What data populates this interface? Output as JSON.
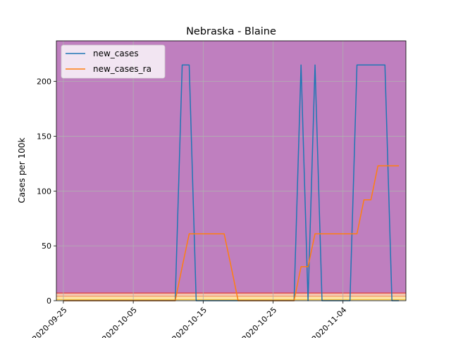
{
  "chart_data": {
    "type": "line",
    "title": "Nebraska - Blaine",
    "xlabel": "",
    "ylabel": "Cases per 100k",
    "xlim": [
      "2020-09-24",
      "2020-11-13"
    ],
    "ylim": [
      0,
      237
    ],
    "yticks": [
      0,
      50,
      100,
      150,
      200
    ],
    "xticks": [
      "2020-09-25",
      "2020-10-05",
      "2020-10-15",
      "2020-10-25",
      "2020-11-04"
    ],
    "grid": true,
    "legend": "top-left",
    "background_bands": [
      {
        "from": 7,
        "to": 237,
        "color": "#bf7fbf"
      },
      {
        "from": 4,
        "to": 7,
        "color": "#f4c7b0"
      },
      {
        "from": 1,
        "to": 4,
        "color": "#fde6a8"
      },
      {
        "from": 0,
        "to": 1,
        "color": "#fff3c4"
      }
    ],
    "threshold_lines": [
      {
        "y": 7,
        "color": "#e03a3a"
      },
      {
        "y": 4,
        "color": "#f29a6a"
      },
      {
        "y": 1,
        "color": "#f5c242"
      }
    ],
    "x": [
      "2020-09-25",
      "2020-09-26",
      "2020-09-27",
      "2020-09-28",
      "2020-09-29",
      "2020-09-30",
      "2020-10-01",
      "2020-10-02",
      "2020-10-03",
      "2020-10-04",
      "2020-10-05",
      "2020-10-06",
      "2020-10-07",
      "2020-10-08",
      "2020-10-09",
      "2020-10-10",
      "2020-10-11",
      "2020-10-12",
      "2020-10-13",
      "2020-10-14",
      "2020-10-15",
      "2020-10-16",
      "2020-10-17",
      "2020-10-18",
      "2020-10-19",
      "2020-10-20",
      "2020-10-21",
      "2020-10-22",
      "2020-10-23",
      "2020-10-24",
      "2020-10-25",
      "2020-10-26",
      "2020-10-27",
      "2020-10-28",
      "2020-10-29",
      "2020-10-30",
      "2020-10-31",
      "2020-11-01",
      "2020-11-02",
      "2020-11-03",
      "2020-11-04",
      "2020-11-05",
      "2020-11-06",
      "2020-11-07",
      "2020-11-08",
      "2020-11-09",
      "2020-11-10",
      "2020-11-11",
      "2020-11-12"
    ],
    "series": [
      {
        "name": "new_cases",
        "color": "#1f77b4",
        "values": [
          0,
          0,
          0,
          0,
          0,
          0,
          0,
          0,
          0,
          0,
          0,
          0,
          0,
          0,
          0,
          0,
          0,
          215,
          215,
          0,
          0,
          0,
          0,
          0,
          0,
          0,
          0,
          0,
          0,
          0,
          0,
          0,
          0,
          0,
          215,
          0,
          215,
          0,
          0,
          0,
          0,
          0,
          215,
          215,
          215,
          215,
          215,
          0,
          0
        ]
      },
      {
        "name": "new_cases_ra",
        "color": "#ff7f0e",
        "values": [
          0,
          0,
          0,
          0,
          0,
          0,
          0,
          0,
          0,
          0,
          0,
          0,
          0,
          0,
          0,
          0,
          0,
          31,
          61,
          61,
          61,
          61,
          61,
          61,
          31,
          0,
          0,
          0,
          0,
          0,
          0,
          0,
          0,
          0,
          31,
          31,
          61,
          61,
          61,
          61,
          61,
          61,
          61,
          92,
          92,
          123,
          123,
          123,
          123
        ]
      }
    ]
  }
}
